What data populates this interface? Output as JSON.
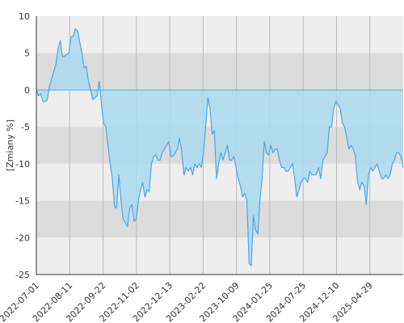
{
  "chart_data": {
    "type": "area",
    "ylabel": "[Zmiany %]",
    "ylim": [
      -25,
      10
    ],
    "yticks": [
      10,
      5,
      0,
      -5,
      -10,
      -15,
      -20,
      -25
    ],
    "xticks": [
      "2022-07-01",
      "2022-08-11",
      "2022-09-22",
      "2022-11-02",
      "2022-12-13",
      "2023-02-22",
      "2023-10-09",
      "2024-01-25",
      "2024-07-25",
      "2024-12-10",
      "2025-04-29"
    ],
    "grid": true,
    "colors": {
      "line": "#4aa6e2",
      "fill": "#a9d9ee",
      "band_dark": "#dcdcdc",
      "band_light": "#eeeeee"
    },
    "series": [
      {
        "y": [
          0,
          -0.8,
          -0.5,
          -1.5,
          -1.6,
          -1.3,
          0.5,
          1.5,
          2.5,
          3.5,
          5.5,
          6.7,
          4.5,
          4.6,
          4.8,
          5.0,
          7.2,
          7.3,
          8.3,
          8.0,
          6.5,
          5.0,
          3.0,
          3.2,
          1.2,
          0,
          -1.3,
          -1.0,
          -0.8,
          1.2,
          -2.0,
          -4.5,
          -5.0,
          -7.5,
          -10.0,
          -12.0,
          -15.8,
          -16.0,
          -11.5,
          -15.0,
          -17.5,
          -18.0,
          -18.5,
          -16.0,
          -15.5,
          -17.8,
          -17.5,
          -15.0,
          -13.5,
          -12.5,
          -14.5,
          -13.5,
          -13.8,
          -10.0,
          -9.0,
          -8.8,
          -9.5,
          -9.5,
          -8.5,
          -8.0,
          -7.5,
          -7.0,
          -9.0,
          -9.0,
          -8.5,
          -8.0,
          -6.5,
          -8.5,
          -11.5,
          -10.5,
          -11.0,
          -10.5,
          -11.5,
          -10.0,
          -10.5,
          -10.0,
          -10.5,
          -8.5,
          -5.0,
          -1.0,
          -2.5,
          -6.0,
          -5.5,
          -12.0,
          -10.0,
          -8.5,
          -9.5,
          -8.5,
          -7.5,
          -9.5,
          -9.5,
          -9.0,
          -10.5,
          -12.0,
          -13.0,
          -14.5,
          -14.0,
          -15.0,
          -23.5,
          -23.8,
          -17.0,
          -19.0,
          -19.5,
          -15.0,
          -12.0,
          -7.0,
          -8.5,
          -8.8,
          -7.5,
          -8.5,
          -8.0,
          -8.0,
          -9.5,
          -10.5,
          -10.5,
          -11.0,
          -11.0,
          -10.5,
          -10.0,
          -12.0,
          -14.5,
          -13.5,
          -12.5,
          -12.0,
          -12.0,
          -12.5,
          -11.0,
          -11.5,
          -11.5,
          -11.5,
          -10.5,
          -12.0,
          -9.5,
          -9.0,
          -8.5,
          -5.0,
          -5.0,
          -2.5,
          -1.5,
          -2.0,
          -2.5,
          -4.5,
          -5.0,
          -6.5,
          -8.0,
          -7.5,
          -8.0,
          -9.0,
          -12.5,
          -13.5,
          -12.5,
          -13.0,
          -15.5,
          -11.5,
          -10.5,
          -11.0,
          -10.5,
          -10.0,
          -11.0,
          -12.0,
          -12.0,
          -11.5,
          -12.0,
          -11.5,
          -10.0,
          -9.5,
          -8.5,
          -8.5,
          -9.0,
          -10.5
        ]
      }
    ]
  }
}
